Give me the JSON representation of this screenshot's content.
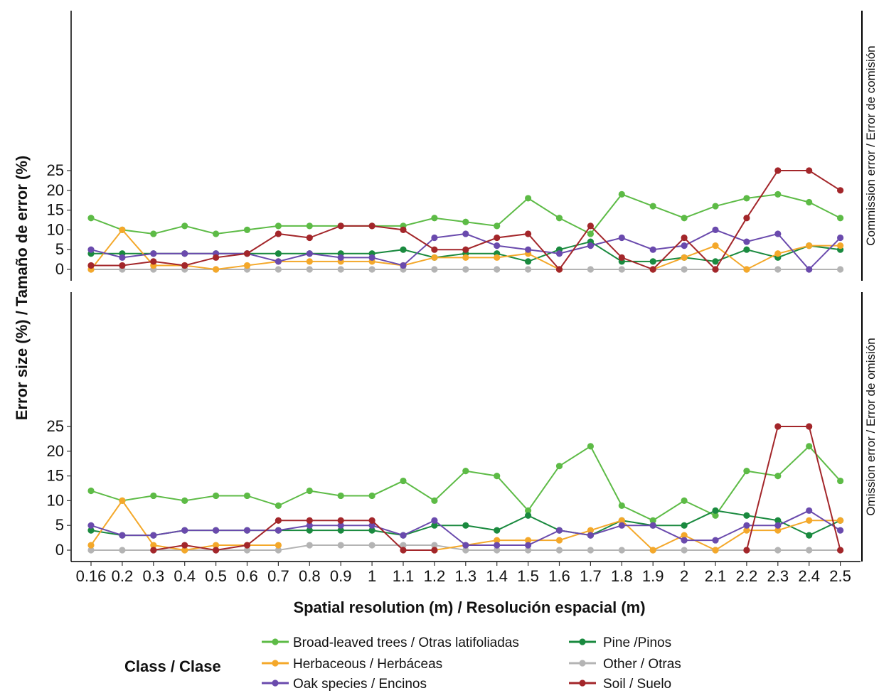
{
  "chart_data": {
    "type": "line",
    "ylabel": "Error size (%) / Tamaño de error (%)",
    "xlabel": "Spatial resolution (m) / Resolución espacial (m)",
    "categories": [
      "0.16",
      "0.2",
      "0.3",
      "0.4",
      "0.5",
      "0.6",
      "0.7",
      "0.8",
      "0.9",
      "1",
      "1.1",
      "1.2",
      "1.3",
      "1.4",
      "1.5",
      "1.6",
      "1.7",
      "1.8",
      "1.9",
      "2",
      "2.1",
      "2.2",
      "2.3",
      "2.4",
      "2.5"
    ],
    "ylim": [
      0,
      25
    ],
    "yticks": [
      "0",
      "5",
      "10",
      "15",
      "20",
      "25"
    ],
    "grid": false,
    "legend": {
      "title": "Class / Clase",
      "position": "bottom",
      "entries": [
        {
          "label": "Broad-leaved trees / Otras latifoliadas",
          "color": "#5dbb46"
        },
        {
          "label": "Herbaceous / Herbáceas",
          "color": "#f4a82a"
        },
        {
          "label": "Oak species / Encinos",
          "color": "#6a4aad"
        },
        {
          "label": "Pine /Pinos",
          "color": "#1a8a3f"
        },
        {
          "label": "Other / Otras",
          "color": "#b4b4b4"
        },
        {
          "label": "Soil / Suelo",
          "color": "#a3262a"
        }
      ]
    },
    "panels": [
      {
        "label": "Commission error / Error de comisión",
        "series": [
          {
            "name": "Broad-leaved trees / Otras latifoliadas",
            "color": "#5dbb46",
            "values": [
              13,
              10,
              9,
              11,
              9,
              10,
              11,
              11,
              11,
              11,
              11,
              13,
              12,
              11,
              18,
              13,
              9,
              19,
              16,
              13,
              16,
              18,
              19,
              17,
              13
            ]
          },
          {
            "name": "Pine /Pinos",
            "color": "#1a8a3f",
            "values": [
              4,
              4,
              4,
              4,
              4,
              4,
              4,
              4,
              4,
              4,
              5,
              3,
              4,
              4,
              2,
              5,
              7,
              2,
              2,
              3,
              2,
              5,
              3,
              6,
              5
            ]
          },
          {
            "name": "Other / Otras",
            "color": "#b4b4b4",
            "values": [
              0,
              0,
              0,
              0,
              0,
              0,
              0,
              0,
              0,
              0,
              0,
              0,
              0,
              0,
              0,
              0,
              0,
              0,
              0,
              0,
              0,
              0,
              0,
              0,
              0
            ]
          },
          {
            "name": "Herbaceous / Herbáceas",
            "color": "#f4a82a",
            "values": [
              0,
              10,
              1,
              1,
              0,
              1,
              2,
              2,
              2,
              2,
              1,
              3,
              3,
              3,
              4,
              0,
              null,
              null,
              0,
              3,
              6,
              0,
              4,
              6,
              6
            ]
          },
          {
            "name": "Oak species / Encinos",
            "color": "#6a4aad",
            "values": [
              5,
              3,
              4,
              4,
              4,
              4,
              2,
              4,
              3,
              3,
              1,
              8,
              9,
              6,
              5,
              4,
              6,
              8,
              5,
              6,
              10,
              7,
              9,
              0,
              8
            ]
          },
          {
            "name": "Soil / Suelo",
            "color": "#a3262a",
            "values": [
              1,
              1,
              2,
              1,
              3,
              4,
              9,
              8,
              11,
              11,
              10,
              5,
              5,
              8,
              9,
              0,
              11,
              3,
              0,
              8,
              0,
              13,
              25,
              25,
              20
            ]
          }
        ]
      },
      {
        "label": "Omission error / Error de omisión",
        "series": [
          {
            "name": "Broad-leaved trees / Otras latifoliadas",
            "color": "#5dbb46",
            "values": [
              12,
              10,
              11,
              10,
              11,
              11,
              9,
              12,
              11,
              11,
              14,
              10,
              16,
              15,
              8,
              17,
              21,
              9,
              6,
              10,
              7,
              16,
              15,
              21,
              14
            ]
          },
          {
            "name": "Pine /Pinos",
            "color": "#1a8a3f",
            "values": [
              4,
              3,
              3,
              4,
              4,
              4,
              4,
              4,
              4,
              4,
              3,
              5,
              5,
              4,
              7,
              4,
              3,
              6,
              5,
              5,
              8,
              7,
              6,
              3,
              6
            ]
          },
          {
            "name": "Other / Otras",
            "color": "#b4b4b4",
            "values": [
              0,
              0,
              0,
              0,
              0,
              0,
              0,
              1,
              1,
              1,
              1,
              1,
              0,
              0,
              0,
              0,
              0,
              0,
              0,
              0,
              0,
              0,
              0,
              0,
              0
            ]
          },
          {
            "name": "Herbaceous / Herbáceas",
            "color": "#f4a82a",
            "values": [
              1,
              10,
              1,
              0,
              1,
              1,
              1,
              null,
              null,
              null,
              null,
              0,
              1,
              2,
              2,
              2,
              4,
              6,
              0,
              3,
              0,
              4,
              4,
              6,
              6
            ]
          },
          {
            "name": "Oak species / Encinos",
            "color": "#6a4aad",
            "values": [
              5,
              3,
              3,
              4,
              4,
              4,
              4,
              5,
              5,
              5,
              3,
              6,
              1,
              1,
              1,
              4,
              3,
              5,
              5,
              2,
              2,
              5,
              5,
              8,
              4
            ]
          },
          {
            "name": "Soil / Suelo",
            "color": "#a3262a",
            "values": [
              null,
              null,
              0,
              1,
              0,
              1,
              6,
              6,
              6,
              6,
              0,
              0,
              null,
              null,
              null,
              null,
              null,
              null,
              null,
              null,
              null,
              0,
              25,
              25,
              0
            ]
          }
        ]
      }
    ]
  }
}
